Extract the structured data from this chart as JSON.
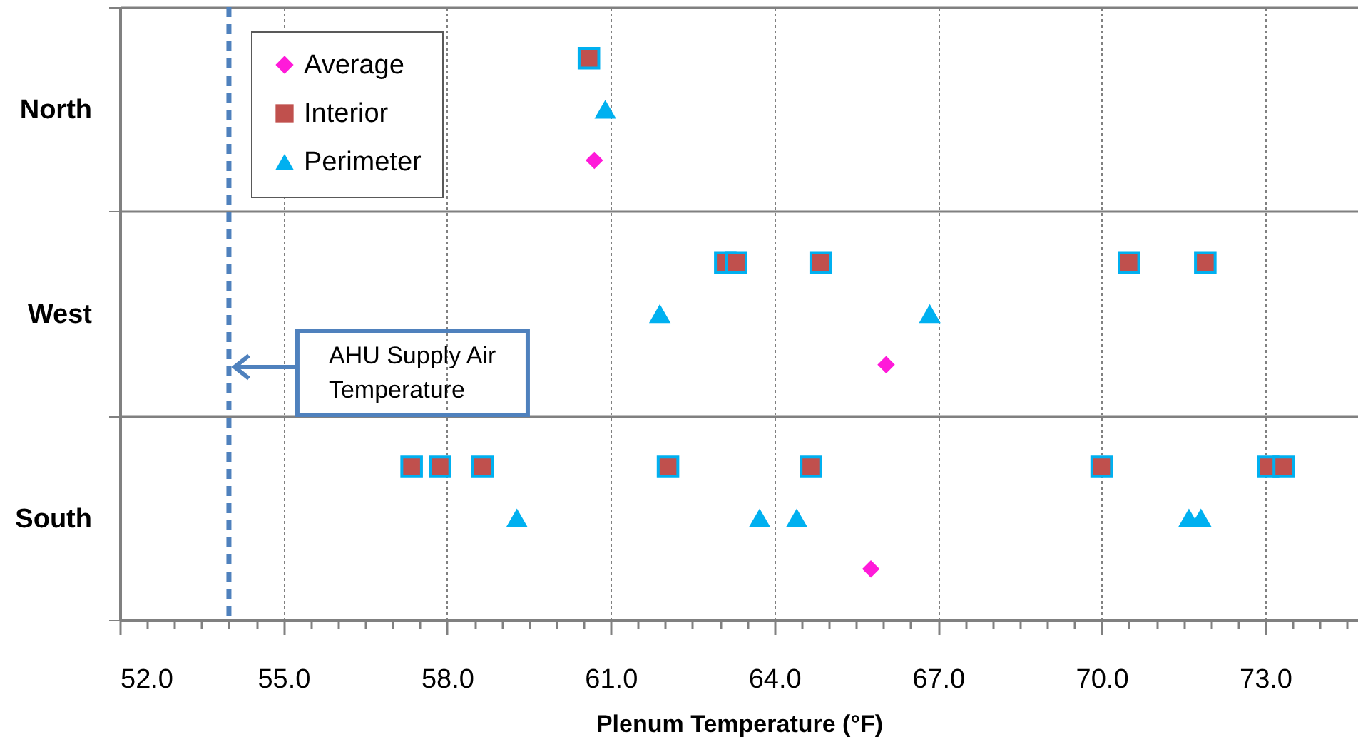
{
  "chart_data": {
    "type": "scatter",
    "orientation": "horizontal",
    "xlabel": "Plenum Temperature (°F)",
    "categories": [
      "North",
      "West",
      "South"
    ],
    "xlim": [
      52,
      74.7
    ],
    "xticks": [
      {
        "value": 52,
        "label": "52.0"
      },
      {
        "value": 52.5,
        "label": null
      },
      {
        "value": 53,
        "label": null
      },
      {
        "value": 53.5,
        "label": null
      },
      {
        "value": 54,
        "label": null
      },
      {
        "value": 54.5,
        "label": null
      },
      {
        "value": 55,
        "label": "55.0"
      },
      {
        "value": 55.5,
        "label": null
      },
      {
        "value": 56,
        "label": null
      },
      {
        "value": 56.5,
        "label": null
      },
      {
        "value": 57,
        "label": null
      },
      {
        "value": 57.5,
        "label": null
      },
      {
        "value": 58,
        "label": "58.0"
      },
      {
        "value": 58.5,
        "label": null
      },
      {
        "value": 59,
        "label": null
      },
      {
        "value": 59.5,
        "label": null
      },
      {
        "value": 60,
        "label": null
      },
      {
        "value": 60.5,
        "label": null
      },
      {
        "value": 61,
        "label": "61.0"
      },
      {
        "value": 61.5,
        "label": null
      },
      {
        "value": 62,
        "label": null
      },
      {
        "value": 62.5,
        "label": null
      },
      {
        "value": 63,
        "label": null
      },
      {
        "value": 63.5,
        "label": null
      },
      {
        "value": 64,
        "label": "64.0"
      },
      {
        "value": 64.5,
        "label": null
      },
      {
        "value": 65,
        "label": null
      },
      {
        "value": 65.5,
        "label": null
      },
      {
        "value": 66,
        "label": null
      },
      {
        "value": 66.5,
        "label": null
      },
      {
        "value": 67,
        "label": "67.0"
      },
      {
        "value": 67.5,
        "label": null
      },
      {
        "value": 68,
        "label": null
      },
      {
        "value": 68.5,
        "label": null
      },
      {
        "value": 69,
        "label": null
      },
      {
        "value": 69.5,
        "label": null
      },
      {
        "value": 70,
        "label": "70.0"
      },
      {
        "value": 70.5,
        "label": null
      },
      {
        "value": 71,
        "label": null
      },
      {
        "value": 71.5,
        "label": null
      },
      {
        "value": 72,
        "label": null
      },
      {
        "value": 72.5,
        "label": null
      },
      {
        "value": 73,
        "label": "73.0"
      },
      {
        "value": 73.5,
        "label": null
      },
      {
        "value": 74,
        "label": null
      },
      {
        "value": 74.5,
        "label": null
      }
    ],
    "grid": true,
    "legend": "top left",
    "series": [
      {
        "name": "Average",
        "color": "#ff1ad9",
        "marker": "diamond",
        "x": [
          "North",
          "West",
          "South"
        ],
        "values": [
          60.7,
          66.05,
          65.77
        ]
      },
      {
        "name": "Interior",
        "color": "#c0504d",
        "marker": "square",
        "x": [
          "North",
          "West",
          "West",
          "West",
          "West",
          "West",
          "South",
          "South",
          "South",
          "South",
          "South",
          "South",
          "South",
          "South"
        ],
        "values": [
          60.6,
          63.1,
          63.3,
          64.85,
          70.5,
          71.9,
          57.35,
          57.87,
          58.65,
          62.05,
          64.67,
          70.0,
          73.05,
          73.34
        ]
      },
      {
        "name": "Perimeter",
        "color": "#00b0f0",
        "marker": "triangle",
        "x": [
          "North",
          "West",
          "West",
          "South",
          "South",
          "South",
          "South",
          "South"
        ],
        "values": [
          60.9,
          61.9,
          66.85,
          59.28,
          63.73,
          64.41,
          71.6,
          71.82
        ]
      }
    ],
    "ref_lines": [
      {
        "axis": "x",
        "value": 54.0,
        "label": "AHU Supply Air Temperature",
        "color": "#4f81bd",
        "line_style": "dashed"
      }
    ]
  }
}
